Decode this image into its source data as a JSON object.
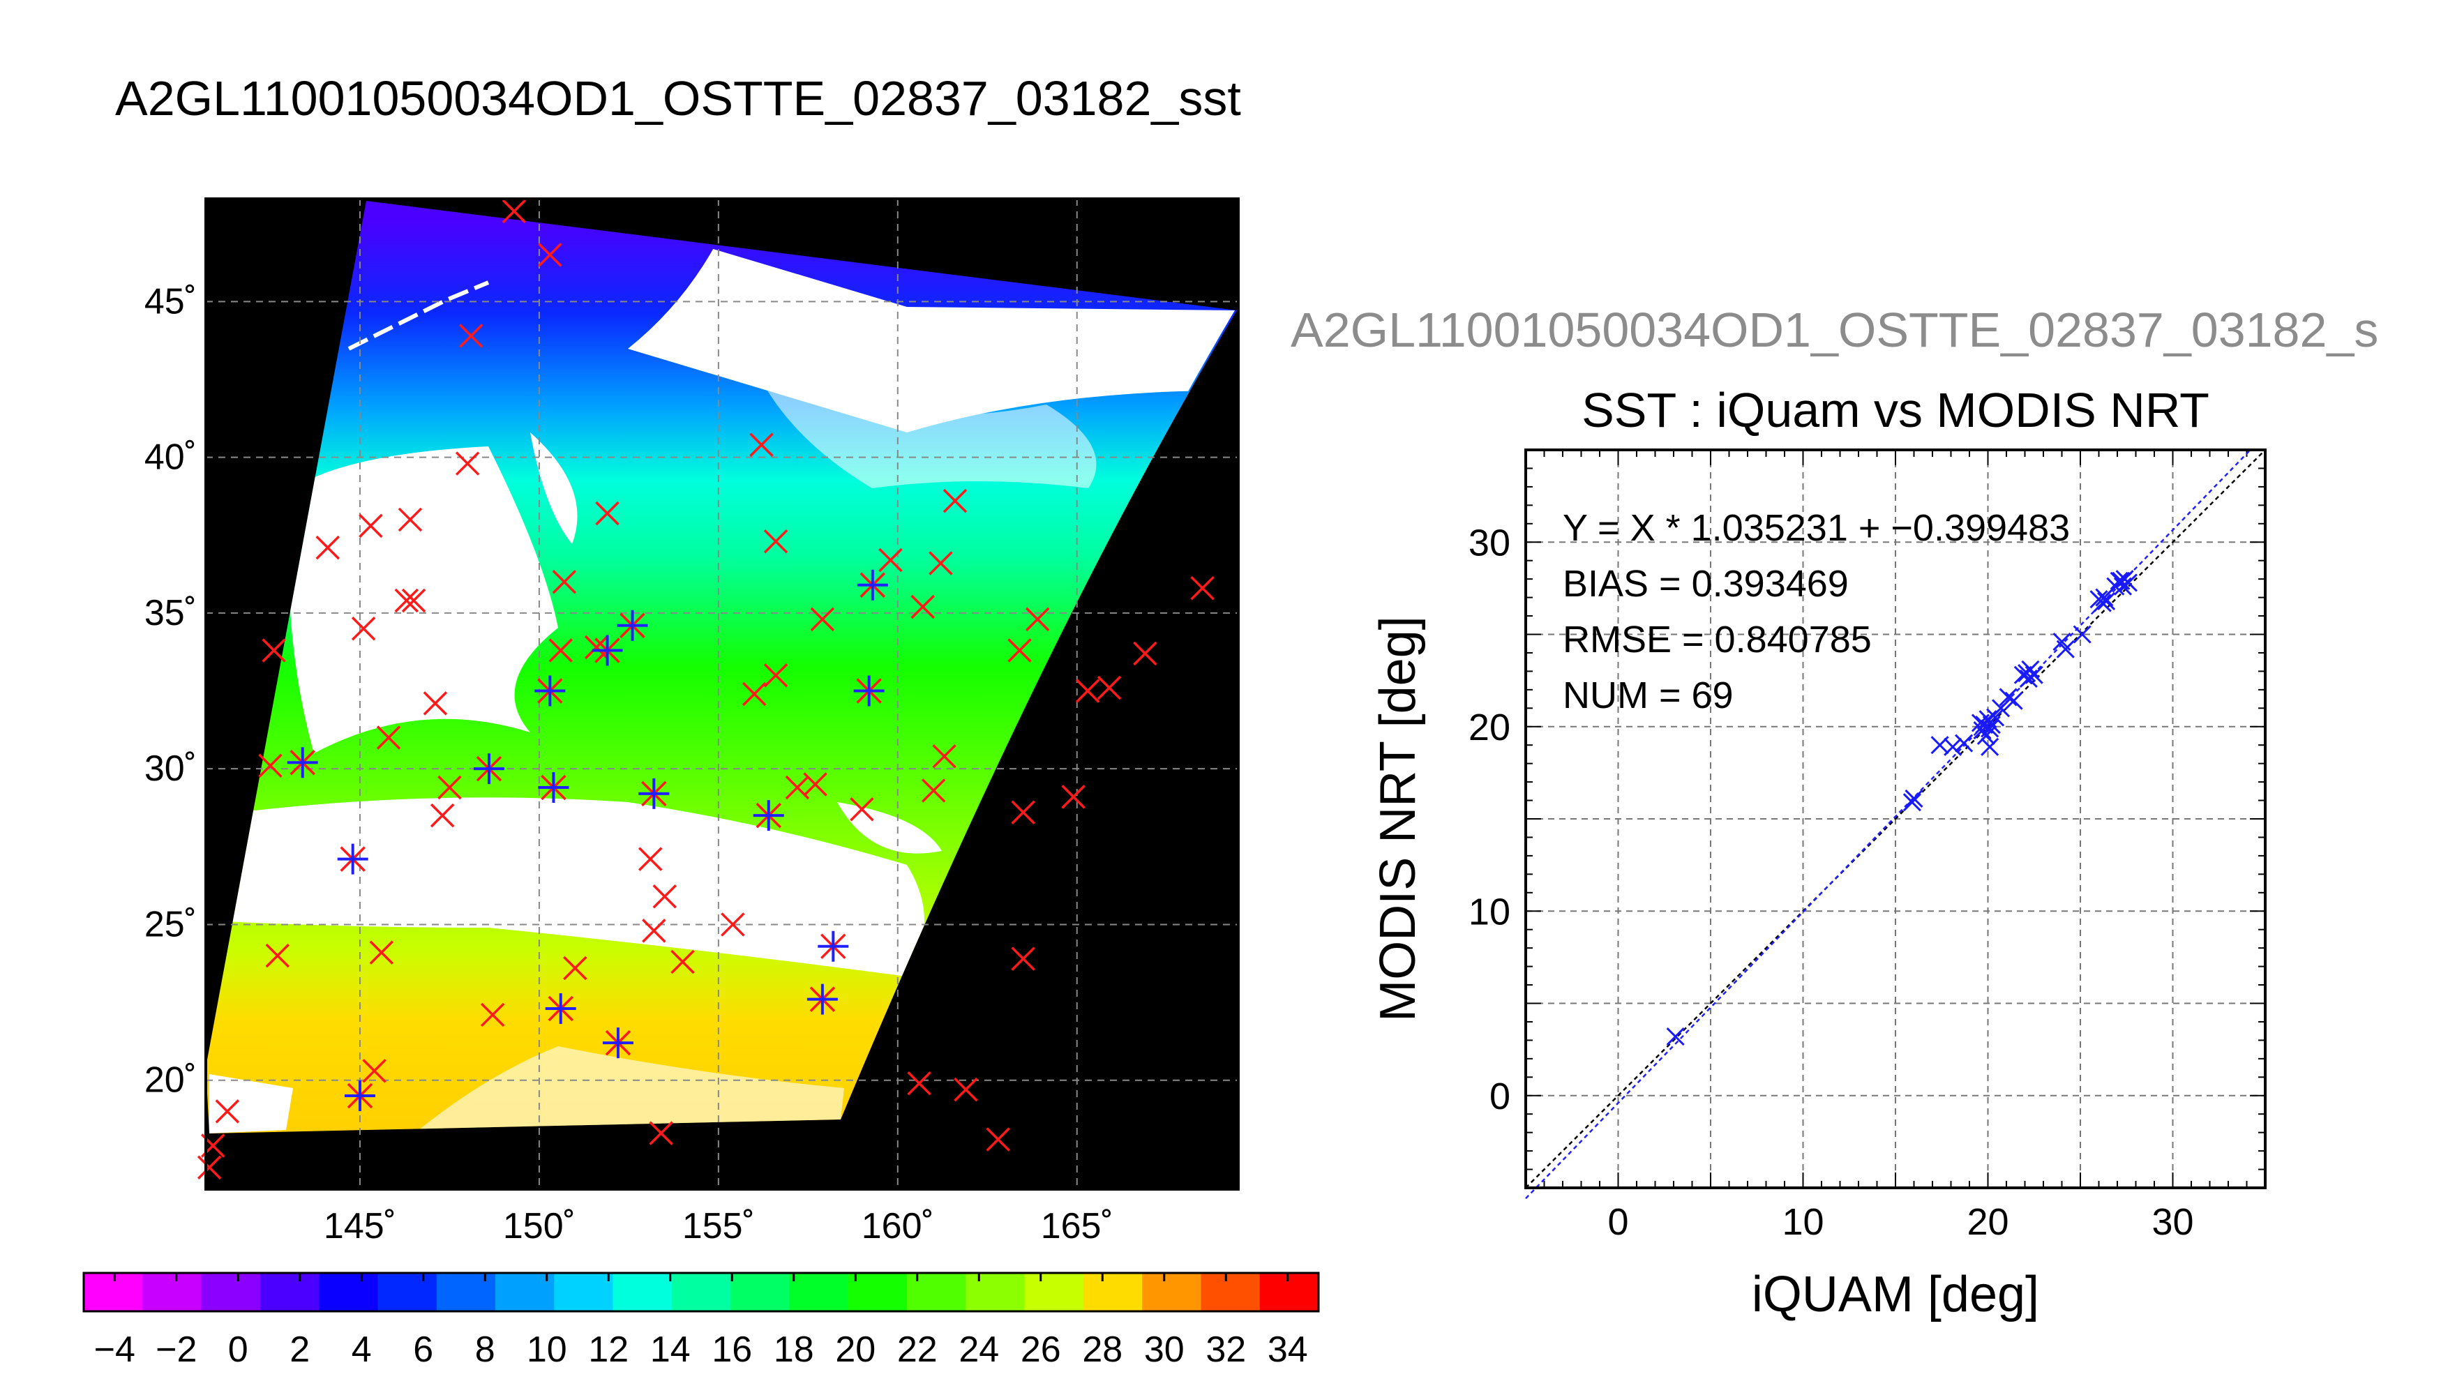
{
  "figure_title": "A2GL11001050034OD1_OSTTE_02837_03182_sst",
  "chart_data": [
    {
      "type": "map",
      "title": "A2GL11001050034OD1_OSTTE_02837_03182_sst",
      "x_ticks": [
        "145˚",
        "150˚",
        "155˚",
        "160˚",
        "165˚"
      ],
      "x_tick_values": [
        145,
        150,
        155,
        160,
        165
      ],
      "y_ticks": [
        "20˚",
        "25˚",
        "30˚",
        "35˚",
        "40˚",
        "45˚"
      ],
      "y_tick_values": [
        20,
        25,
        30,
        35,
        40,
        45
      ],
      "xlim": [
        140.7,
        169.5
      ],
      "ylim": [
        16.5,
        48.3
      ],
      "grid": true,
      "colorbar": {
        "ticks": [
          "−4",
          "−2",
          "0",
          "2",
          "4",
          "6",
          "8",
          "10",
          "12",
          "14",
          "16",
          "18",
          "20",
          "22",
          "24",
          "26",
          "28",
          "30",
          "32",
          "34"
        ],
        "range": [
          -5,
          35
        ],
        "colors": [
          "#ff00ff",
          "#c800ff",
          "#8c00ff",
          "#4b00ff",
          "#0a00ff",
          "#0028ff",
          "#0064ff",
          "#00a0ff",
          "#00d2ff",
          "#00ffdc",
          "#00ffa0",
          "#00ff64",
          "#00ff28",
          "#14ff00",
          "#50ff00",
          "#8cff00",
          "#c8ff00",
          "#ffdc00",
          "#ff9600",
          "#ff5000",
          "#ff0000"
        ]
      },
      "matchups_red": [
        [
          142.6,
          33.8
        ],
        [
          142.5,
          30.1
        ],
        [
          142.7,
          24.0
        ],
        [
          141.3,
          19.0
        ],
        [
          140.9,
          17.9
        ],
        [
          140.8,
          17.2
        ],
        [
          144.1,
          37.1
        ],
        [
          145.3,
          37.8
        ],
        [
          146.4,
          38.0
        ],
        [
          145.1,
          34.5
        ],
        [
          146.3,
          35.4
        ],
        [
          146.5,
          35.4
        ],
        [
          145.8,
          31.0
        ],
        [
          147.1,
          32.1
        ],
        [
          147.3,
          28.5
        ],
        [
          147.5,
          29.4
        ],
        [
          145.6,
          24.1
        ],
        [
          145.4,
          20.3
        ],
        [
          148.0,
          39.8
        ],
        [
          148.1,
          43.9
        ],
        [
          150.3,
          46.5
        ],
        [
          149.3,
          47.9
        ],
        [
          150.7,
          36.0
        ],
        [
          150.6,
          33.8
        ],
        [
          151.6,
          33.9
        ],
        [
          151.9,
          38.2
        ],
        [
          148.7,
          22.1
        ],
        [
          151.0,
          23.6
        ],
        [
          153.1,
          27.1
        ],
        [
          153.5,
          25.9
        ],
        [
          153.2,
          24.8
        ],
        [
          154.0,
          23.8
        ],
        [
          155.4,
          25.0
        ],
        [
          156.2,
          40.4
        ],
        [
          156.6,
          37.3
        ],
        [
          156.0,
          32.4
        ],
        [
          156.6,
          33.0
        ],
        [
          157.2,
          29.4
        ],
        [
          157.7,
          29.5
        ],
        [
          157.9,
          34.8
        ],
        [
          159.8,
          36.7
        ],
        [
          160.7,
          35.2
        ],
        [
          161.2,
          36.6
        ],
        [
          161.6,
          38.6
        ],
        [
          161.3,
          30.4
        ],
        [
          161.0,
          29.3
        ],
        [
          159.0,
          28.7
        ],
        [
          160.6,
          19.9
        ],
        [
          161.9,
          19.7
        ],
        [
          162.8,
          18.1
        ],
        [
          163.5,
          28.6
        ],
        [
          163.5,
          23.9
        ],
        [
          163.4,
          33.8
        ],
        [
          163.9,
          34.8
        ],
        [
          164.9,
          29.1
        ],
        [
          165.3,
          32.5
        ],
        [
          165.9,
          32.6
        ],
        [
          166.9,
          33.7
        ],
        [
          168.5,
          35.8
        ],
        [
          153.4,
          18.3
        ]
      ],
      "matchups_blue": [
        [
          143.4,
          30.2
        ],
        [
          144.8,
          27.1
        ],
        [
          145.0,
          19.5
        ],
        [
          148.6,
          30.0
        ],
        [
          150.3,
          32.5
        ],
        [
          150.4,
          29.4
        ],
        [
          150.6,
          22.3
        ],
        [
          152.2,
          21.2
        ],
        [
          152.6,
          34.6
        ],
        [
          153.2,
          29.2
        ],
        [
          156.4,
          28.5
        ],
        [
          157.9,
          22.6
        ],
        [
          158.2,
          24.3
        ],
        [
          159.2,
          32.5
        ],
        [
          159.3,
          35.9
        ],
        [
          151.9,
          33.8
        ]
      ]
    },
    {
      "type": "scatter",
      "title": "SST : iQuam vs MODIS NRT",
      "header": "A2GL11001050034OD1_OSTTE_02837_03182_s",
      "xlabel": "iQUAM [deg]",
      "ylabel": "MODIS NRT [deg]",
      "xlim": [
        -5,
        35
      ],
      "ylim": [
        -5,
        35
      ],
      "x_ticks": [
        "0",
        "10",
        "20",
        "30"
      ],
      "x_tick_values": [
        0,
        10,
        20,
        30
      ],
      "y_ticks": [
        "0",
        "10",
        "20",
        "30"
      ],
      "y_tick_values": [
        0,
        10,
        20,
        30
      ],
      "grid": true,
      "fit": {
        "slope": 1.035231,
        "intercept": -0.399483
      },
      "stats": [
        "Y = X * 1.035231 + −0.399483",
        "BIAS = 0.393469",
        "RMSE = 0.840785",
        "NUM = 69"
      ],
      "points": [
        [
          3.1,
          3.2
        ],
        [
          15.9,
          15.9
        ],
        [
          16.0,
          16.1
        ],
        [
          17.4,
          19.0
        ],
        [
          18.1,
          18.9
        ],
        [
          18.7,
          19.1
        ],
        [
          19.6,
          20.2
        ],
        [
          19.7,
          19.8
        ],
        [
          19.8,
          20.1
        ],
        [
          19.9,
          19.5
        ],
        [
          20.0,
          20.4
        ],
        [
          20.1,
          19.9
        ],
        [
          20.2,
          20.1
        ],
        [
          20.1,
          18.9
        ],
        [
          20.4,
          20.5
        ],
        [
          20.7,
          21.0
        ],
        [
          21.1,
          21.6
        ],
        [
          21.4,
          21.4
        ],
        [
          21.9,
          22.8
        ],
        [
          22.1,
          22.9
        ],
        [
          22.3,
          23.1
        ],
        [
          22.5,
          22.8
        ],
        [
          22.2,
          22.6
        ],
        [
          24.0,
          24.6
        ],
        [
          24.2,
          24.2
        ],
        [
          25.1,
          25.0
        ],
        [
          26.0,
          26.9
        ],
        [
          26.3,
          27.0
        ],
        [
          26.4,
          26.8
        ],
        [
          26.2,
          26.7
        ],
        [
          26.9,
          27.6
        ],
        [
          27.2,
          27.9
        ],
        [
          27.4,
          28.0
        ],
        [
          27.3,
          27.6
        ],
        [
          27.1,
          27.9
        ],
        [
          27.6,
          27.8
        ]
      ]
    }
  ]
}
